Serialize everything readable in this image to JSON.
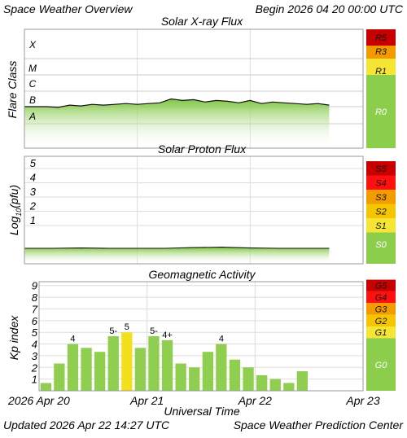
{
  "header": {
    "title": "Space Weather Overview",
    "begin": "Begin 2026 04 20 00:00 UTC"
  },
  "footer": {
    "updated": "Updated 2026 Apr 22 14:27 UTC",
    "center": "Space Weather Prediction Center"
  },
  "colors": {
    "green_bar": "#8fce4f",
    "yellow_bar": "#f4e01a",
    "flux_green": "#7cc43c",
    "scale_green": "#8cce4c",
    "s1": "#f6e534",
    "s2": "#f4c500",
    "s3": "#f39c00",
    "s4": "#ff1010",
    "s5": "#c80000"
  },
  "chart_data": [
    {
      "type": "area",
      "title": "Solar X-ray Flux",
      "ylabel": "Flare Class",
      "y_class_labels": [
        "A",
        "B",
        "C",
        "M",
        "X"
      ],
      "x_ticks": [
        "Apr 20",
        "Apr 21",
        "Apr 22",
        "Apr 23"
      ],
      "x_range_days": [
        0,
        3
      ],
      "series": [
        {
          "x": [
            0,
            0.1,
            0.2,
            0.3,
            0.4,
            0.5,
            0.6,
            0.7,
            0.8,
            0.9,
            1.0,
            1.1,
            1.2,
            1.3,
            1.4,
            1.5,
            1.6,
            1.7,
            1.8,
            1.9,
            2.0,
            2.1,
            2.2,
            2.3,
            2.4,
            2.5,
            2.6,
            2.7
          ],
          "values": [
            -7.0,
            -7.0,
            -7.0,
            -7.05,
            -6.9,
            -6.95,
            -6.85,
            -6.9,
            -6.85,
            -6.8,
            -6.85,
            -6.8,
            -6.75,
            -6.5,
            -6.6,
            -6.55,
            -6.7,
            -6.6,
            -6.65,
            -6.75,
            -6.6,
            -6.8,
            -6.7,
            -6.75,
            -6.8,
            -6.85,
            -6.8,
            -6.9
          ]
        }
      ],
      "scale": [
        "R0",
        "R1",
        "R3",
        "R5"
      ]
    },
    {
      "type": "area",
      "title": "Solar Proton Flux",
      "ylabel": "Log10(pfu)",
      "y_ticks": [
        "1",
        "2",
        "3",
        "4",
        "5"
      ],
      "x_range_days": [
        0,
        3
      ],
      "series": [
        {
          "x": [
            0,
            0.25,
            0.5,
            0.75,
            1.0,
            1.25,
            1.5,
            1.75,
            2.0,
            2.25,
            2.5,
            2.7
          ],
          "values": [
            -0.6,
            -0.6,
            -0.58,
            -0.6,
            -0.6,
            -0.6,
            -0.55,
            -0.52,
            -0.58,
            -0.6,
            -0.6,
            -0.6
          ]
        }
      ],
      "scale": [
        "S0",
        "S1",
        "S2",
        "S3",
        "S4",
        "S5"
      ]
    },
    {
      "type": "bar",
      "title": "Geomagnetic Activity",
      "ylabel": "Kp index",
      "xlabel": "Universal Time",
      "x_tick_labels": [
        "2026 Apr 20",
        "Apr 21",
        "Apr 22",
        "Apr 23"
      ],
      "y_ticks": [
        "1",
        "2",
        "3",
        "4",
        "5",
        "6",
        "7",
        "8",
        "9"
      ],
      "ylim": [
        0,
        9.33
      ],
      "values": [
        0.67,
        2.33,
        4.0,
        3.67,
        3.33,
        4.67,
        5.0,
        3.67,
        4.67,
        4.33,
        2.33,
        2.0,
        3.33,
        4.0,
        2.67,
        2.0,
        1.33,
        1.0,
        0.67,
        1.67
      ],
      "highlight_index": 6,
      "bar_labels": {
        "2": "4",
        "5": "5-",
        "6": "5",
        "8": "5-",
        "9": "4+",
        "13": "4"
      },
      "scale": [
        "G0",
        "G1",
        "G2",
        "G3",
        "G4",
        "G5"
      ]
    }
  ]
}
